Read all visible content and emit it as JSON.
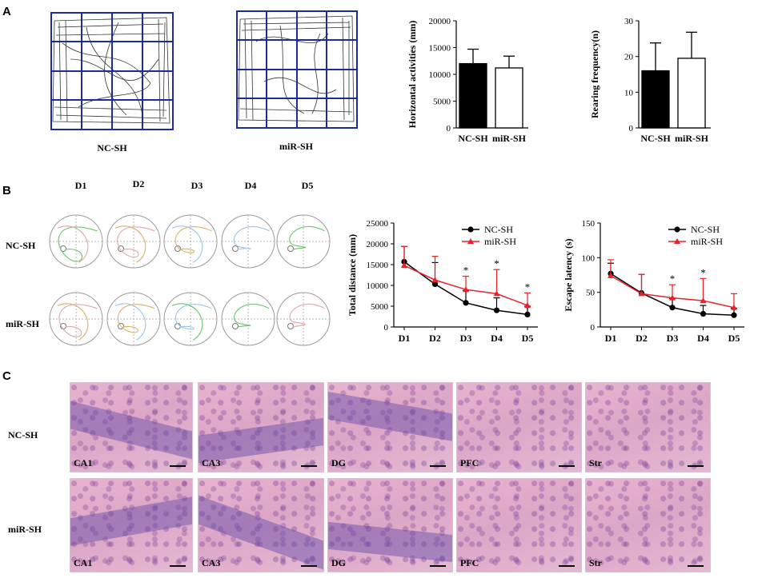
{
  "panels": {
    "A": {
      "letter": "A",
      "tracks": [
        {
          "caption": "NC-SH"
        },
        {
          "caption": "miR-SH"
        }
      ]
    },
    "B": {
      "letter": "B",
      "days": [
        "D1",
        "D2",
        "D3",
        "D4",
        "D5"
      ],
      "rows": [
        "NC-SH",
        "miR-SH"
      ]
    },
    "C": {
      "letter": "C",
      "rows": [
        "NC-SH",
        "miR-SH"
      ],
      "regions": [
        "CA1",
        "CA3",
        "DG",
        "PFC",
        "Str"
      ]
    }
  },
  "colors": {
    "nc": "#000000",
    "mir": "#e8222b",
    "grid": "#1d2c9c"
  },
  "chart_data": [
    {
      "id": "horiz",
      "type": "bar",
      "ylabel": "Horizontal activities (mm)",
      "categories": [
        "NC-SH",
        "miR-SH"
      ],
      "values": [
        12000,
        11200
      ],
      "errors": [
        2700,
        2200
      ],
      "fills": [
        "#000000",
        "#ffffff"
      ],
      "ylim": [
        0,
        20000
      ],
      "yticks": [
        0,
        5000,
        10000,
        15000,
        20000
      ]
    },
    {
      "id": "rear",
      "type": "bar",
      "ylabel": "Rearing frequency(n)",
      "categories": [
        "NC-SH",
        "miR-SH"
      ],
      "values": [
        16,
        19.5
      ],
      "errors": [
        7.8,
        7.3
      ],
      "fills": [
        "#000000",
        "#ffffff"
      ],
      "ylim": [
        0,
        30
      ],
      "yticks": [
        0,
        10,
        20,
        30
      ]
    },
    {
      "id": "dist",
      "type": "line",
      "ylabel": "Total distance (mm)",
      "x": [
        "D1",
        "D2",
        "D3",
        "D4",
        "D5"
      ],
      "ylim": [
        0,
        25000
      ],
      "yticks": [
        0,
        5000,
        10000,
        15000,
        20000,
        25000
      ],
      "series": [
        {
          "name": "NC-SH",
          "values": [
            15700,
            10300,
            5800,
            4000,
            3000
          ],
          "errors": [
            3700,
            5200,
            3000,
            3000,
            2000
          ]
        },
        {
          "name": "miR-SH",
          "values": [
            14800,
            11300,
            9000,
            8000,
            5200
          ],
          "errors": [
            4600,
            5700,
            3200,
            5800,
            3000
          ]
        }
      ],
      "significance": [
        "",
        "",
        "*",
        "*",
        "*"
      ]
    },
    {
      "id": "lat",
      "type": "line",
      "ylabel": "Escape latency (s)",
      "x": [
        "D1",
        "D2",
        "D3",
        "D4",
        "D5"
      ],
      "ylim": [
        0,
        150
      ],
      "yticks": [
        0,
        50,
        100,
        150
      ],
      "series": [
        {
          "name": "NC-SH",
          "values": [
            77,
            49,
            28,
            19,
            17
          ],
          "errors": [
            15,
            27,
            13,
            12,
            10
          ]
        },
        {
          "name": "miR-SH",
          "values": [
            74,
            48,
            42,
            38,
            28
          ],
          "errors": [
            23,
            28,
            19,
            32,
            20
          ]
        }
      ],
      "significance": [
        "",
        "",
        "*",
        "*",
        ""
      ]
    }
  ]
}
